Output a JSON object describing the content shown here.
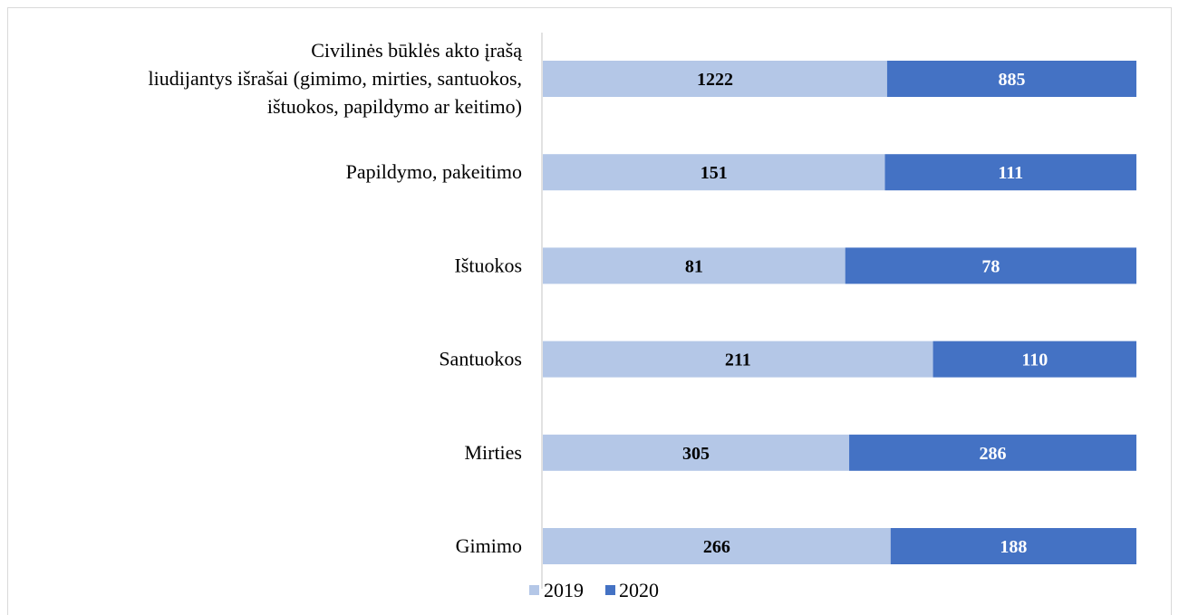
{
  "chart_data": {
    "type": "bar",
    "orientation": "horizontal",
    "stacked": "percent",
    "categories": [
      "Civilinės būklės akto įrašą liudijantys išrašai (gimimo, mirties, santuokos, ištuokos, papildymo ar keitimo)",
      "Papildymo, pakeitimo",
      "Ištuokos",
      "Santuokos",
      "Mirties",
      "Gimimo"
    ],
    "category_lines": [
      [
        "Civilinės būklės akto įrašą",
        "liudijantys išrašai (gimimo, mirties, santuokos,",
        "ištuokos, papildymo ar keitimo)"
      ],
      [
        "Papildymo, pakeitimo"
      ],
      [
        "Ištuokos"
      ],
      [
        "Santuokos"
      ],
      [
        "Mirties"
      ],
      [
        "Gimimo"
      ]
    ],
    "series": [
      {
        "name": "2019",
        "color": "#b4c7e7",
        "label_color": "#000000",
        "values": [
          1222,
          151,
          81,
          211,
          305,
          266
        ]
      },
      {
        "name": "2020",
        "color": "#4472c4",
        "label_color": "#ffffff",
        "values": [
          885,
          111,
          78,
          110,
          286,
          188
        ]
      }
    ],
    "grid": false,
    "legend": "bottom"
  }
}
